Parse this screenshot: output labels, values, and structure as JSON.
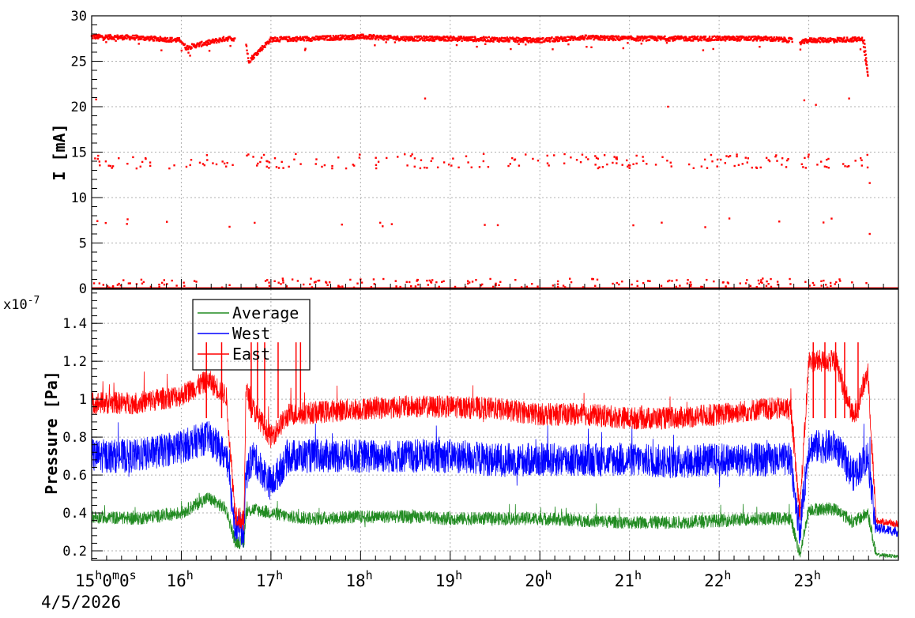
{
  "chart_data": [
    {
      "type": "scatter",
      "ylabel": "I [mA]",
      "ylim": [
        0,
        30
      ],
      "yticks": [
        "0",
        "5",
        "10",
        "15",
        "20",
        "25",
        "30"
      ],
      "grid": true,
      "colors": {
        "series": "#ff0000"
      },
      "series": [
        {
          "description_of_values": "beam current readings over the day",
          "x_hours": [
            15.0,
            15.5,
            16.0,
            16.05,
            16.5,
            16.6,
            16.72,
            16.75,
            17.0,
            17.5,
            18.0,
            18.5,
            19.0,
            19.5,
            20.0,
            20.5,
            21.0,
            21.5,
            22.0,
            22.5,
            22.82,
            22.9,
            23.0,
            23.5,
            23.6,
            23.66
          ],
          "y_main": [
            27.7,
            27.6,
            27.3,
            26.5,
            27.5,
            27.5,
            27.2,
            25.0,
            27.4,
            27.5,
            27.7,
            27.5,
            27.5,
            27.4,
            27.3,
            27.6,
            27.5,
            27.5,
            27.5,
            27.5,
            27.3,
            27.0,
            27.3,
            27.4,
            27.4,
            23.4
          ]
        }
      ]
    },
    {
      "type": "line",
      "ylabel": "Pressure [Pa]",
      "multiplier": "x10",
      "multiplier_exp": "-7",
      "ylim": [
        0.15,
        1.58
      ],
      "yticks": [
        "0.2",
        "0.4",
        "0.6",
        "0.8",
        "1",
        "1.2",
        "1.4"
      ],
      "grid": true,
      "legend_position": "top-left",
      "series": [
        {
          "name": "Average",
          "color": "#228b22",
          "x": [
            15.0,
            15.5,
            16.0,
            16.3,
            16.5,
            16.6,
            16.7,
            16.72,
            16.8,
            17.0,
            17.2,
            17.5,
            18.0,
            18.5,
            19.0,
            19.5,
            20.0,
            20.5,
            21.0,
            21.5,
            22.0,
            22.5,
            22.8,
            22.9,
            23.0,
            23.3,
            23.5,
            23.66,
            23.75,
            24.0
          ],
          "y": [
            0.38,
            0.37,
            0.4,
            0.48,
            0.42,
            0.25,
            0.24,
            0.4,
            0.42,
            0.4,
            0.38,
            0.37,
            0.38,
            0.38,
            0.37,
            0.37,
            0.37,
            0.36,
            0.35,
            0.35,
            0.36,
            0.37,
            0.37,
            0.18,
            0.42,
            0.42,
            0.35,
            0.4,
            0.18,
            0.17
          ]
        },
        {
          "name": "West",
          "color": "#0000ff",
          "x": [
            15.0,
            15.5,
            16.0,
            16.3,
            16.5,
            16.6,
            16.7,
            16.72,
            16.8,
            17.0,
            17.2,
            17.5,
            18.0,
            18.5,
            19.0,
            19.5,
            20.0,
            20.5,
            21.0,
            21.5,
            22.0,
            22.5,
            22.8,
            22.9,
            23.0,
            23.3,
            23.5,
            23.66,
            23.75,
            24.0
          ],
          "y": [
            0.7,
            0.7,
            0.75,
            0.8,
            0.7,
            0.34,
            0.3,
            0.6,
            0.7,
            0.55,
            0.7,
            0.7,
            0.7,
            0.7,
            0.7,
            0.68,
            0.68,
            0.68,
            0.68,
            0.67,
            0.68,
            0.68,
            0.68,
            0.3,
            0.75,
            0.75,
            0.6,
            0.7,
            0.32,
            0.3
          ]
        },
        {
          "name": "East",
          "color": "#ff0000",
          "x": [
            15.0,
            15.5,
            16.0,
            16.3,
            16.5,
            16.6,
            16.7,
            16.72,
            16.8,
            17.0,
            17.2,
            17.5,
            18.0,
            18.5,
            19.0,
            19.5,
            20.0,
            20.5,
            21.0,
            21.5,
            22.0,
            22.5,
            22.8,
            22.9,
            23.0,
            23.3,
            23.5,
            23.66,
            23.75,
            24.0
          ],
          "y": [
            0.98,
            0.98,
            1.02,
            1.1,
            1.02,
            0.4,
            0.35,
            1.05,
            0.95,
            0.8,
            0.92,
            0.93,
            0.95,
            0.96,
            0.96,
            0.95,
            0.92,
            0.92,
            0.9,
            0.9,
            0.92,
            0.95,
            0.95,
            0.4,
            1.2,
            1.2,
            0.9,
            1.15,
            0.36,
            0.34
          ]
        }
      ]
    }
  ],
  "xaxis": {
    "ticks": [
      {
        "hour": 15,
        "label": "15",
        "sup": "h",
        "extra": "0",
        "extra_sup": "m",
        "extra2": "0",
        "extra2_sup": "s"
      },
      {
        "hour": 16,
        "label": "16",
        "sup": "h"
      },
      {
        "hour": 17,
        "label": "17",
        "sup": "h"
      },
      {
        "hour": 18,
        "label": "18",
        "sup": "h"
      },
      {
        "hour": 19,
        "label": "19",
        "sup": "h"
      },
      {
        "hour": 20,
        "label": "20",
        "sup": "h"
      },
      {
        "hour": 21,
        "label": "21",
        "sup": "h"
      },
      {
        "hour": 22,
        "label": "22",
        "sup": "h"
      },
      {
        "hour": 23,
        "label": "23",
        "sup": "h"
      }
    ],
    "range_hours": [
      15.0,
      24.0
    ],
    "date": "4/5/2026"
  }
}
